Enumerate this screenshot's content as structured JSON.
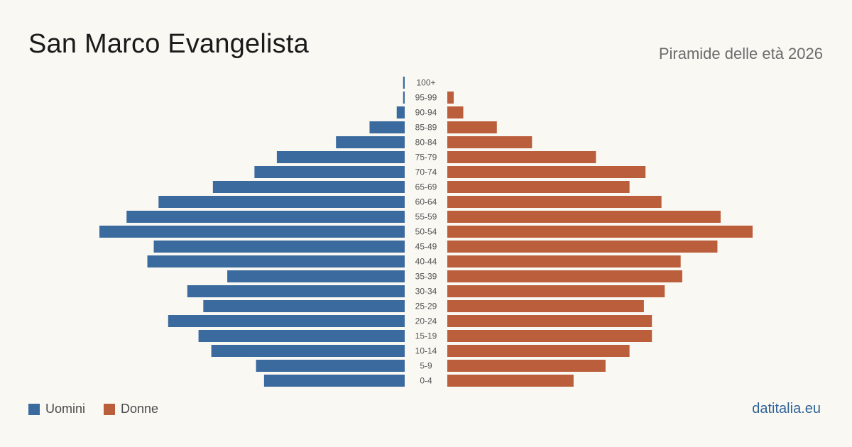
{
  "title": "San Marco Evangelista",
  "subtitle": "Piramide delle età 2026",
  "site": "datitalia.eu",
  "colors": {
    "male": "#3b6b9e",
    "female": "#bb5e3c",
    "background": "#faf8f3",
    "age_label": "#555555",
    "site": "#2f6497"
  },
  "chart_data": {
    "type": "bar",
    "orientation": "horizontal-pyramid",
    "title": "San Marco Evangelista",
    "subtitle": "Piramide delle età 2026",
    "categories": [
      "100+",
      "95-99",
      "90-94",
      "85-89",
      "80-84",
      "75-79",
      "70-74",
      "65-69",
      "60-64",
      "55-59",
      "50-54",
      "45-49",
      "40-44",
      "35-39",
      "30-34",
      "25-29",
      "20-24",
      "15-19",
      "10-14",
      "5-9",
      "0-4"
    ],
    "series": [
      {
        "name": "Uomini",
        "color": "#3b6b9e",
        "side": "left",
        "values": [
          1,
          1,
          5,
          22,
          43,
          80,
          94,
          120,
          154,
          174,
          191,
          157,
          161,
          111,
          136,
          126,
          148,
          129,
          121,
          93,
          88
        ]
      },
      {
        "name": "Donne",
        "color": "#bb5e3c",
        "side": "right",
        "values": [
          0,
          4,
          10,
          31,
          53,
          93,
          124,
          114,
          134,
          171,
          191,
          169,
          146,
          147,
          136,
          123,
          128,
          128,
          114,
          99,
          79
        ]
      }
    ],
    "xlim": [
      0,
      191
    ],
    "grid": false,
    "legend": "bottom-left"
  }
}
